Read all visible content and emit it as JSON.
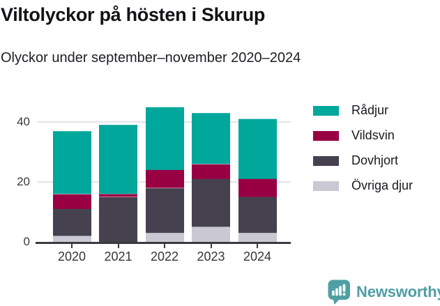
{
  "header": {
    "title": "Viltolyckor på hösten i Skurup",
    "subtitle": "Olyckor under september–november 2020–2024"
  },
  "chart_data": {
    "type": "bar",
    "stacked": true,
    "title": "Viltolyckor på hösten i Skurup",
    "subtitle": "Olyckor under september–november 2020–2024",
    "categories": [
      "2020",
      "2021",
      "2022",
      "2023",
      "2024"
    ],
    "series": [
      {
        "name": "Rådjur",
        "color": "#00A79B",
        "values": [
          21,
          23,
          21,
          17,
          20
        ]
      },
      {
        "name": "Vildsvin",
        "color": "#990044",
        "values": [
          5,
          1,
          6,
          5,
          6
        ]
      },
      {
        "name": "Dovhjort",
        "color": "#45414E",
        "values": [
          9,
          15,
          15,
          16,
          12
        ]
      },
      {
        "name": "Övriga djur",
        "color": "#C9C8D3",
        "values": [
          2,
          0,
          3,
          5,
          3
        ]
      }
    ],
    "stack_order_bottom_to_top": [
      "Övriga djur",
      "Dovhjort",
      "Vildsvin",
      "Rådjur"
    ],
    "totals": [
      37,
      39,
      45,
      43,
      41
    ],
    "xlabel": "",
    "ylabel": "",
    "yticks": [
      0,
      20,
      40
    ],
    "ylim": [
      0,
      46
    ],
    "grid": true,
    "legend_position": "right"
  },
  "colors": {
    "axis": "#3b3a40",
    "gridline": "#e4e4e7",
    "logo_teal": "#4F9FA4"
  },
  "footer": {
    "brand": "Newsworthy"
  }
}
